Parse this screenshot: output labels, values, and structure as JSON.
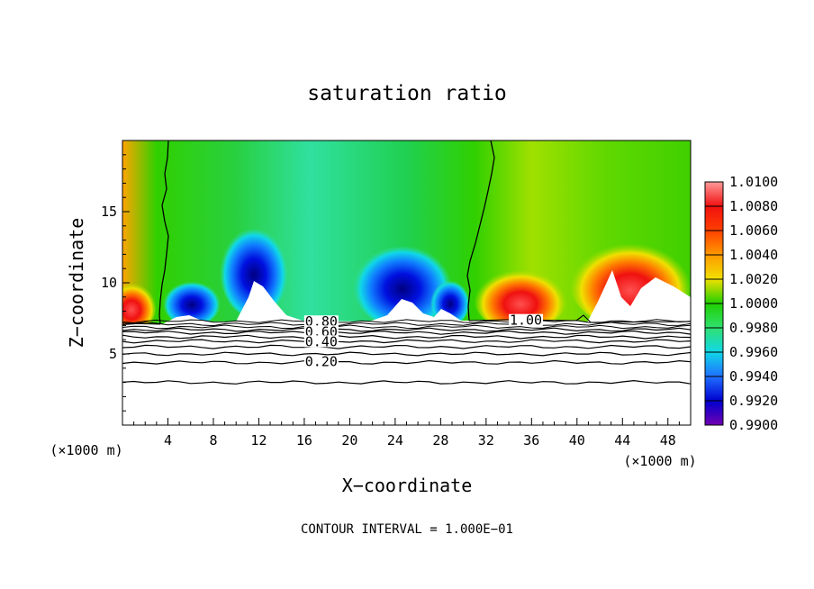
{
  "chart_data": {
    "type": "heatmap",
    "title": "saturation ratio",
    "xlabel": "X−coordinate",
    "ylabel": "Z−coordinate",
    "x_unit_left": "(×1000 m)",
    "x_unit_right": "(×1000 m)",
    "xlim": [
      0,
      50
    ],
    "ylim": [
      0,
      20
    ],
    "x_ticks": [
      4,
      8,
      12,
      16,
      20,
      24,
      28,
      32,
      36,
      40,
      44,
      48
    ],
    "y_ticks": [
      5,
      10,
      15
    ],
    "footer": "CONTOUR INTERVAL = 1.000E−01",
    "colorbar": {
      "labels": [
        "1.0100",
        "1.0080",
        "1.0060",
        "1.0040",
        "1.0020",
        "1.0000",
        "0.9980",
        "0.9960",
        "0.9940",
        "0.9920",
        "0.9900"
      ],
      "values": [
        1.01,
        1.008,
        1.006,
        1.004,
        1.002,
        1.0,
        0.998,
        0.996,
        0.994,
        0.992,
        0.99
      ],
      "colors": [
        "#ff9a9a",
        "#f01010",
        "#ff7a00",
        "#f0e000",
        "#70e000",
        "#20d000",
        "#30e090",
        "#10d8e8",
        "#2070ff",
        "#0000d0",
        "#7000b0"
      ]
    },
    "contour_labels": [
      {
        "text": "1.00",
        "x": 35.5,
        "y": 7.3
      },
      {
        "text": "0.80",
        "x": 17.5,
        "y": 7.2
      },
      {
        "text": "0.60",
        "x": 17.5,
        "y": 6.5
      },
      {
        "text": "0.40",
        "x": 17.5,
        "y": 5.8
      },
      {
        "text": "0.20",
        "x": 17.5,
        "y": 4.4
      }
    ],
    "isolines_below_z": [
      7.3,
      7.1,
      6.9,
      6.7,
      6.5,
      6.2,
      5.9,
      5.5,
      5.0,
      4.4,
      3.0
    ],
    "unity_contour_x": [
      4.0,
      30.8
    ],
    "white_region_top_z": 7.4
  }
}
